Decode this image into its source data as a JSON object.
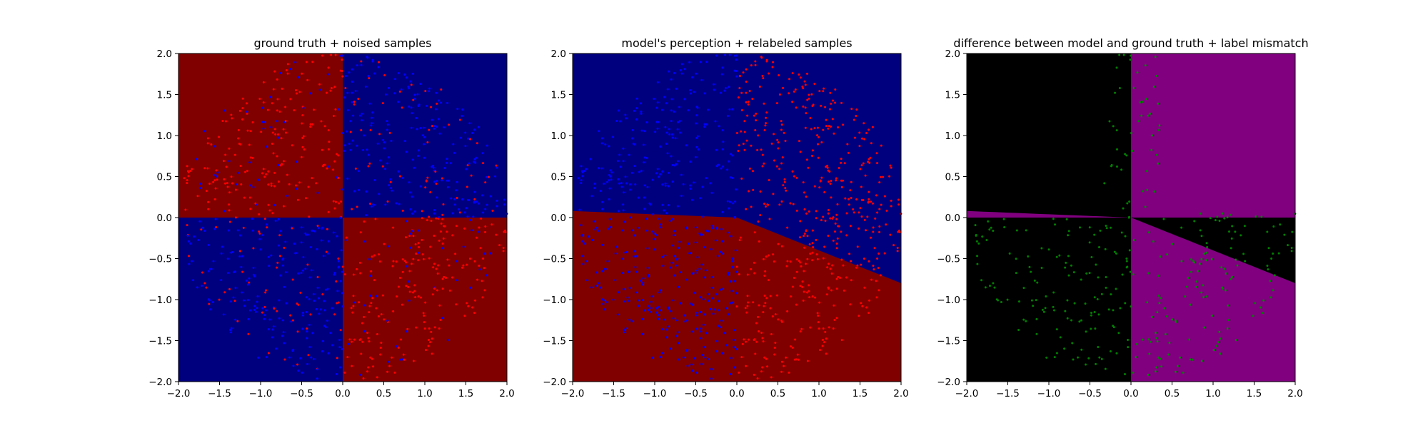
{
  "figure": {
    "background": "#ffffff"
  },
  "chart_data": [
    {
      "type": "scatter",
      "title": "ground truth + noised samples",
      "xlabel": "",
      "ylabel": "",
      "xlim": [
        -2.0,
        2.0
      ],
      "ylim": [
        -2.0,
        2.0
      ],
      "xticks": [
        "−2.0",
        "−1.5",
        "−1.0",
        "−0.5",
        "0.0",
        "0.5",
        "1.0",
        "1.5",
        "2.0"
      ],
      "yticks": [
        "−2.0",
        "−1.5",
        "−1.0",
        "−0.5",
        "0.0",
        "0.5",
        "1.0",
        "1.5",
        "2.0"
      ],
      "grid": false,
      "legend": "none",
      "background_regions": [
        {
          "region": "x<0, y>0",
          "color": "#800000"
        },
        {
          "region": "x>0, y>0",
          "color": "#00007f"
        },
        {
          "region": "x<0, y<0",
          "color": "#00007f"
        },
        {
          "region": "x>0, y<0",
          "color": "#800000"
        }
      ],
      "points": {
        "colors": [
          "#ff0000",
          "#0000ff"
        ],
        "approx_count": 1000,
        "spread": "roughly uniform inside the circle of radius 2"
      }
    },
    {
      "type": "scatter",
      "title": "model's perception + relabeled samples",
      "xlabel": "",
      "ylabel": "",
      "xlim": [
        -2.0,
        2.0
      ],
      "ylim": [
        -2.0,
        2.0
      ],
      "xticks": [
        "−2.0",
        "−1.5",
        "−1.0",
        "−0.5",
        "0.0",
        "0.5",
        "1.0",
        "1.5",
        "2.0"
      ],
      "yticks": [
        "−2.0",
        "−1.5",
        "−1.0",
        "−0.5",
        "0.0",
        "0.5",
        "1.0",
        "1.5",
        "2.0"
      ],
      "grid": false,
      "legend": "none",
      "decision_boundary": {
        "x": [
          -2.0,
          0.0,
          2.0
        ],
        "y": [
          0.08,
          0.0,
          -0.8
        ]
      },
      "region_colors": {
        "above": "#00007f",
        "below": "#800000"
      },
      "points": {
        "colors": [
          "#ff0000",
          "#0000ff"
        ],
        "approx_count": 1000,
        "spread": "roughly uniform inside the circle of radius 2"
      }
    },
    {
      "type": "scatter",
      "title": "difference between model and ground truth + label mismatch",
      "xlabel": "",
      "ylabel": "",
      "xlim": [
        -2.0,
        2.0
      ],
      "ylim": [
        -2.0,
        2.0
      ],
      "xticks": [
        "−2.0",
        "−1.5",
        "−1.0",
        "−0.5",
        "0.0",
        "0.5",
        "1.0",
        "1.5",
        "2.0"
      ],
      "yticks": [
        "−2.0",
        "−1.5",
        "−1.0",
        "−0.5",
        "0.0",
        "0.5",
        "1.0",
        "1.5",
        "2.0"
      ],
      "grid": false,
      "legend": "none",
      "background_color": "#000000",
      "mismatch_regions": [
        {
          "region": "x>0, y>0",
          "color": "#800080"
        },
        {
          "region": "x<0, 0<y<boundary",
          "color": "#800080"
        },
        {
          "region": "x>0, boundary<y<0 excluded; y<boundary",
          "color": "#800080"
        }
      ],
      "points": {
        "colors": [
          "#008000"
        ],
        "approx_count": 450,
        "spread": "mostly in the lower half and along x = 0 in the upper half"
      }
    }
  ]
}
